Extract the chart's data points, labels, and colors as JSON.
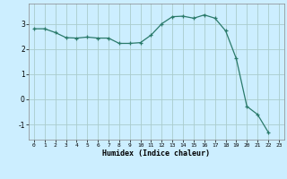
{
  "x": [
    0,
    1,
    2,
    3,
    4,
    5,
    6,
    7,
    8,
    9,
    10,
    11,
    12,
    13,
    14,
    15,
    16,
    17,
    18,
    19,
    20,
    21,
    22,
    23
  ],
  "y": [
    2.8,
    2.8,
    2.65,
    2.45,
    2.43,
    2.47,
    2.43,
    2.43,
    2.22,
    2.22,
    2.25,
    2.55,
    3.0,
    3.28,
    3.3,
    3.22,
    3.35,
    3.22,
    2.72,
    1.62,
    -0.28,
    -0.6,
    -1.3,
    null
  ],
  "xlabel": "Humidex (Indice chaleur)",
  "bg_color": "#cceeff",
  "grid_color": "#aacccc",
  "line_color": "#2a7a6a",
  "marker_color": "#2a7a6a",
  "xlim": [
    -0.5,
    23.5
  ],
  "ylim": [
    -1.6,
    3.8
  ],
  "yticks": [
    -1,
    0,
    1,
    2,
    3
  ],
  "xticks": [
    0,
    1,
    2,
    3,
    4,
    5,
    6,
    7,
    8,
    9,
    10,
    11,
    12,
    13,
    14,
    15,
    16,
    17,
    18,
    19,
    20,
    21,
    22,
    23
  ]
}
